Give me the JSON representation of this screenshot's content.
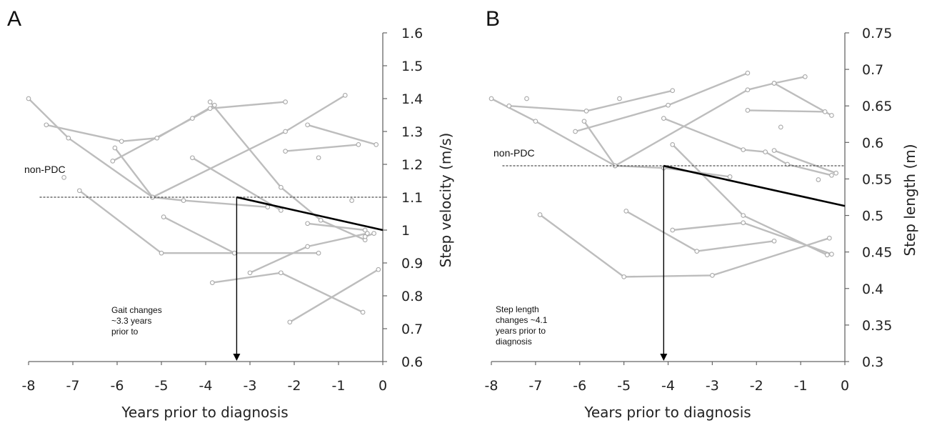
{
  "chart_data": [
    {
      "type": "line",
      "panel": "A",
      "xlabel": "Years prior to diagnosis",
      "ylabel": "Step velocity (m/s)",
      "xlim": [
        -8,
        0
      ],
      "ylim": [
        0.6,
        1.6
      ],
      "xticks": [
        "-8",
        "-7",
        "-6",
        "-5",
        "-4",
        "-3",
        "-2",
        "-1",
        "0"
      ],
      "yticks": [
        "0.6",
        "0.7",
        "0.8",
        "0.9",
        "1",
        "1.1",
        "1.2",
        "1.3",
        "1.4",
        "1.5",
        "1.6"
      ],
      "reference_line": {
        "label": "non-PDC",
        "y": 1.1
      },
      "change_point": {
        "x": -3.3,
        "y": 1.1,
        "text": [
          "Gait changes",
          "~3.3 years",
          "prior to"
        ]
      },
      "trend_line": [
        [
          -3.3,
          1.1
        ],
        [
          0,
          1.0
        ]
      ],
      "series": [
        {
          "points": [
            [
              -8.0,
              1.4
            ],
            [
              -7.1,
              1.28
            ],
            [
              -5.2,
              1.1
            ],
            [
              -4.5,
              1.09
            ],
            [
              -2.6,
              1.07
            ]
          ]
        },
        {
          "points": [
            [
              -7.6,
              1.32
            ],
            [
              -5.9,
              1.27
            ],
            [
              -5.1,
              1.28
            ],
            [
              -3.8,
              1.38
            ]
          ]
        },
        {
          "points": [
            [
              -6.1,
              1.21
            ],
            [
              -4.3,
              1.34
            ],
            [
              -3.9,
              1.37
            ],
            [
              -2.2,
              1.39
            ]
          ]
        },
        {
          "points": [
            [
              -6.05,
              1.25
            ],
            [
              -5.2,
              1.1
            ]
          ]
        },
        {
          "points": [
            [
              -5.2,
              1.1
            ],
            [
              -2.2,
              1.3
            ],
            [
              -0.85,
              1.41
            ]
          ]
        },
        {
          "points": [
            [
              -3.9,
              1.39
            ],
            [
              -2.3,
              1.13
            ],
            [
              -1.4,
              1.03
            ],
            [
              -0.4,
              0.97
            ]
          ]
        },
        {
          "points": [
            [
              -4.3,
              1.22
            ],
            [
              -2.3,
              1.06
            ]
          ]
        },
        {
          "points": [
            [
              -6.85,
              1.12
            ],
            [
              -5.0,
              0.93
            ],
            [
              -3.35,
              0.93
            ],
            [
              -1.45,
              0.93
            ]
          ]
        },
        {
          "points": [
            [
              -4.95,
              1.04
            ],
            [
              -3.35,
              0.93
            ]
          ]
        },
        {
          "points": [
            [
              -3.85,
              0.84
            ],
            [
              -2.3,
              0.87
            ],
            [
              -0.45,
              0.75
            ]
          ]
        },
        {
          "points": [
            [
              -3.0,
              0.87
            ],
            [
              -1.7,
              0.95
            ],
            [
              -0.35,
              0.99
            ]
          ]
        },
        {
          "points": [
            [
              -1.7,
              1.02
            ],
            [
              -0.4,
              1.0
            ]
          ]
        },
        {
          "points": [
            [
              -1.7,
              1.32
            ],
            [
              -0.15,
              1.26
            ]
          ]
        },
        {
          "points": [
            [
              -2.2,
              1.24
            ],
            [
              -0.55,
              1.26
            ]
          ]
        },
        {
          "points": [
            [
              -2.1,
              0.72
            ],
            [
              -0.1,
              0.88
            ]
          ]
        },
        {
          "points": [
            [
              -0.4,
              0.98
            ],
            [
              -0.2,
              0.99
            ]
          ]
        }
      ],
      "isolated_points": [
        [
          -7.2,
          1.16
        ],
        [
          -1.45,
          1.22
        ],
        [
          -0.7,
          1.09
        ]
      ]
    },
    {
      "type": "line",
      "panel": "B",
      "xlabel": "Years prior to diagnosis",
      "ylabel": "Step length (m)",
      "xlim": [
        -8,
        0
      ],
      "ylim": [
        0.3,
        0.75
      ],
      "xticks": [
        "-8",
        "-7",
        "-6",
        "-5",
        "-4",
        "-3",
        "-2",
        "-1",
        "0"
      ],
      "yticks": [
        "0.3",
        "0.35",
        "0.4",
        "0.45",
        "0.5",
        "0.55",
        "0.6",
        "0.65",
        "0.7",
        "0.75"
      ],
      "reference_line": {
        "label": "non-PDC",
        "y": 0.568
      },
      "change_point": {
        "x": -4.1,
        "y": 0.568,
        "text": [
          "Step length",
          "changes ~4.1",
          "years prior to",
          "diagnosis"
        ]
      },
      "trend_line": [
        [
          -4.1,
          0.568
        ],
        [
          0,
          0.513
        ]
      ],
      "series": [
        {
          "points": [
            [
              -8.0,
              0.66
            ],
            [
              -7.0,
              0.629
            ],
            [
              -5.2,
              0.568
            ],
            [
              -4.1,
              0.565
            ],
            [
              -2.6,
              0.553
            ]
          ]
        },
        {
          "points": [
            [
              -7.6,
              0.65
            ],
            [
              -5.85,
              0.643
            ],
            [
              -3.9,
              0.671
            ]
          ]
        },
        {
          "points": [
            [
              -6.1,
              0.615
            ],
            [
              -4.0,
              0.651
            ],
            [
              -2.2,
              0.695
            ]
          ]
        },
        {
          "points": [
            [
              -5.9,
              0.629
            ],
            [
              -5.2,
              0.568
            ]
          ]
        },
        {
          "points": [
            [
              -5.2,
              0.568
            ],
            [
              -2.2,
              0.672
            ],
            [
              -1.6,
              0.681
            ],
            [
              -0.9,
              0.69
            ]
          ]
        },
        {
          "points": [
            [
              -1.6,
              0.681
            ],
            [
              -0.3,
              0.637
            ]
          ]
        },
        {
          "points": [
            [
              -2.2,
              0.644
            ],
            [
              -0.45,
              0.642
            ]
          ]
        },
        {
          "points": [
            [
              -4.1,
              0.633
            ],
            [
              -2.3,
              0.59
            ],
            [
              -1.8,
              0.587
            ],
            [
              -1.3,
              0.57
            ],
            [
              -0.3,
              0.555
            ]
          ]
        },
        {
          "points": [
            [
              -1.6,
              0.589
            ],
            [
              -0.2,
              0.558
            ]
          ]
        },
        {
          "points": [
            [
              -3.9,
              0.597
            ],
            [
              -2.3,
              0.5
            ],
            [
              -0.4,
              0.446
            ]
          ]
        },
        {
          "points": [
            [
              -4.95,
              0.506
            ],
            [
              -3.35,
              0.451
            ],
            [
              -1.6,
              0.465
            ]
          ]
        },
        {
          "points": [
            [
              -3.9,
              0.48
            ],
            [
              -2.3,
              0.49
            ],
            [
              -0.3,
              0.447
            ]
          ]
        },
        {
          "points": [
            [
              -6.9,
              0.501
            ],
            [
              -5.0,
              0.416
            ],
            [
              -3.0,
              0.418
            ],
            [
              -0.35,
              0.469
            ]
          ]
        }
      ],
      "isolated_points": [
        [
          -7.2,
          0.66
        ],
        [
          -5.1,
          0.66
        ],
        [
          -1.45,
          0.621
        ],
        [
          -0.6,
          0.549
        ]
      ]
    }
  ]
}
